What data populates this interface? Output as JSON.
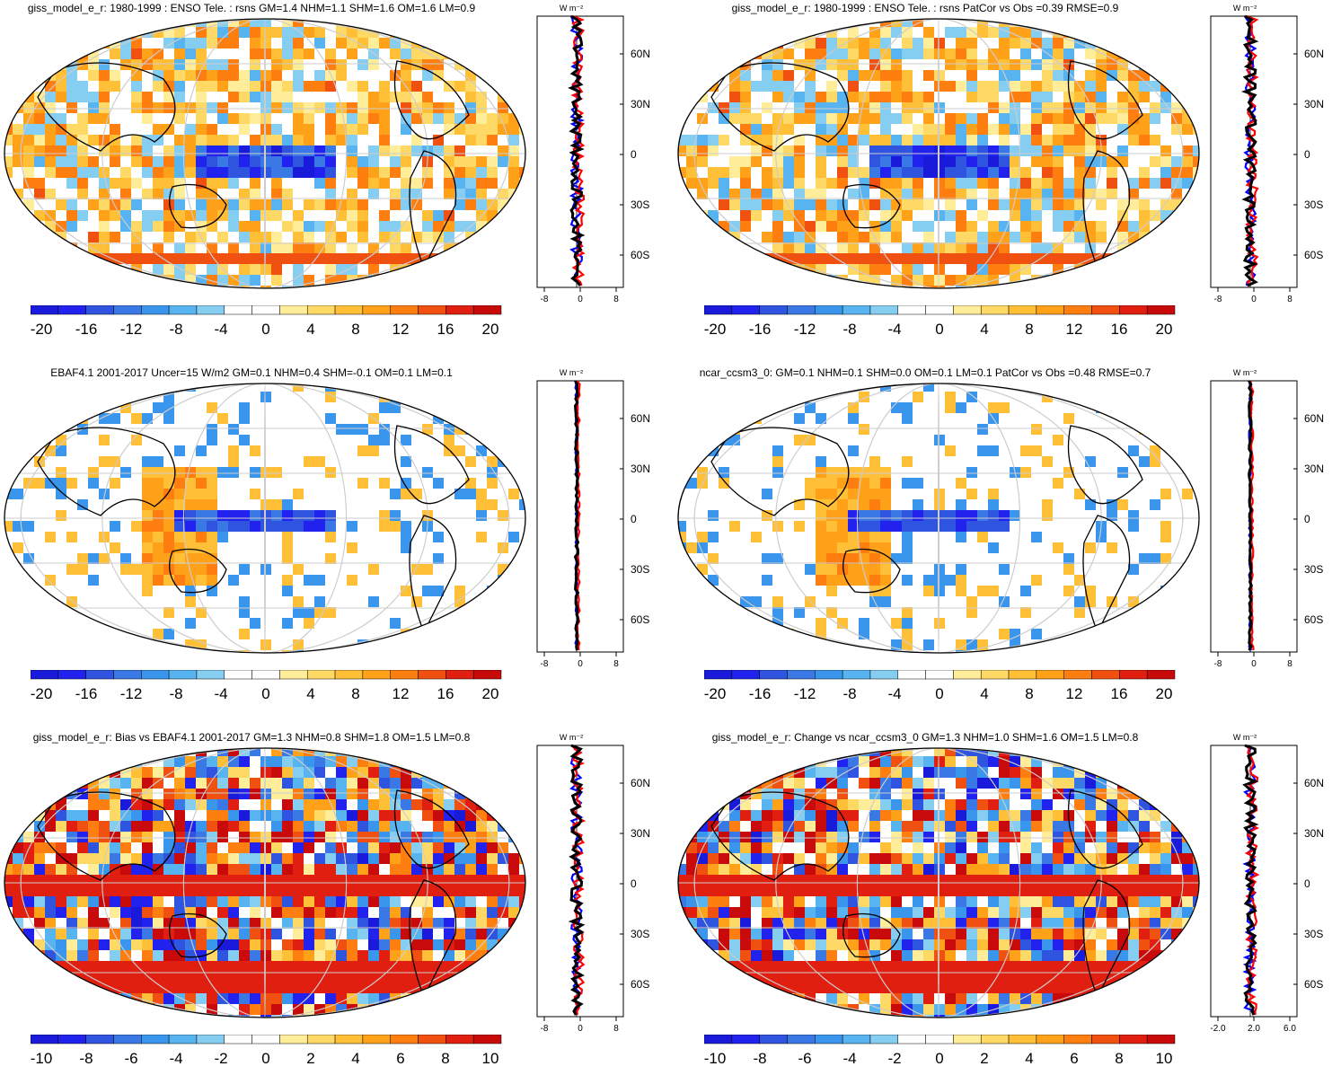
{
  "palette": {
    "levels20": [
      "#1a1adb",
      "#2222ee",
      "#2f55e0",
      "#3a78e6",
      "#3a95ec",
      "#57b4f0",
      "#86cdf2",
      "#ffffff",
      "#ffffff",
      "#ffed9a",
      "#ffd966",
      "#ffc038",
      "#ffa21a",
      "#ff7e10",
      "#f05010",
      "#e01f10",
      "#c80a0a"
    ],
    "ocean_positive": "#ffd966",
    "ocean_negative": "#57b4f0",
    "line_model": "#0000ff",
    "line_obs": "#ff0000",
    "line_third": "#000000",
    "grid": "#cccccc"
  },
  "panels": [
    {
      "title": "giss_model_e_r: 1980-1999 : ENSO Tele. : rsns GM=1.4 NHM=1.1 SHM=1.6 OM=1.6 LM=0.9",
      "field_style": "noisy",
      "colorbar_labels": [
        "-20",
        "-16",
        "-12",
        "-8",
        "-4",
        "0",
        "4",
        "8",
        "12",
        "16",
        "20"
      ],
      "profile": {
        "unit_label": "W m⁻²",
        "x_tick_labels": [
          "-8",
          "0",
          "8"
        ],
        "lat_labels": [
          "60N",
          "30N",
          "0",
          "30S",
          "60S"
        ]
      }
    },
    {
      "title": "giss_model_e_r: 1980-1999 : ENSO Tele. : rsns PatCor vs Obs =0.39 RMSE=0.9",
      "field_style": "noisy",
      "colorbar_labels": [
        "-20",
        "-16",
        "-12",
        "-8",
        "-4",
        "0",
        "4",
        "8",
        "12",
        "16",
        "20"
      ],
      "profile": {
        "unit_label": "W m⁻²",
        "x_tick_labels": [
          "-8",
          "0",
          "8"
        ],
        "lat_labels": [
          "60N",
          "30N",
          "0",
          "30S",
          "60S"
        ]
      }
    },
    {
      "title": "EBAF4.1 2001-2017 Uncer=15 W/m2 GM=0.1 NHM=0.4 SHM=-0.1 OM=0.1 LM=0.1",
      "field_style": "smooth",
      "colorbar_labels": [
        "-20",
        "-16",
        "-12",
        "-8",
        "-4",
        "0",
        "4",
        "8",
        "12",
        "16",
        "20"
      ],
      "profile": {
        "unit_label": "W m⁻²",
        "x_tick_labels": [
          "-8",
          "0",
          "8"
        ],
        "lat_labels": [
          "60N",
          "30N",
          "0",
          "30S",
          "60S"
        ]
      }
    },
    {
      "title": "ncar_ccsm3_0: GM=0.1 NHM=0.1 SHM=0.0 OM=0.1 LM=0.1 PatCor vs Obs =0.48 RMSE=0.7",
      "field_style": "smooth",
      "colorbar_labels": [
        "-20",
        "-16",
        "-12",
        "-8",
        "-4",
        "0",
        "4",
        "8",
        "12",
        "16",
        "20"
      ],
      "profile": {
        "unit_label": "W m⁻²",
        "x_tick_labels": [
          "-8",
          "0",
          "8"
        ],
        "lat_labels": [
          "60N",
          "30N",
          "0",
          "30S",
          "60S"
        ]
      }
    },
    {
      "title": "giss_model_e_r: Bias vs EBAF4.1 2001-2017 GM=1.3 NHM=0.8 SHM=1.8 OM=1.5 LM=0.8",
      "field_style": "bias",
      "colorbar_labels": [
        "-10",
        "-8",
        "-6",
        "-4",
        "-2",
        "0",
        "2",
        "4",
        "6",
        "8",
        "10"
      ],
      "profile": {
        "unit_label": "W m⁻²",
        "x_tick_labels": [
          "-8",
          "0",
          "8"
        ],
        "lat_labels": [
          "60N",
          "30N",
          "0",
          "30S",
          "60S"
        ]
      }
    },
    {
      "title": "giss_model_e_r: Change vs ncar_ccsm3_0 GM=1.3 NHM=1.0 SHM=1.6 OM=1.5 LM=0.8",
      "field_style": "bias",
      "colorbar_labels": [
        "-10",
        "-8",
        "-6",
        "-4",
        "-2",
        "0",
        "2",
        "4",
        "6",
        "8",
        "10"
      ],
      "profile": {
        "unit_label": "W m⁻²",
        "x_tick_labels": [
          "-2.0",
          "2.0",
          "6.0"
        ],
        "lat_labels": [
          "60N",
          "30N",
          "0",
          "30S",
          "60S"
        ]
      }
    }
  ],
  "chart_data": [
    {
      "type": "heatmap",
      "title": "giss_model_e_r: 1980-1999 : ENSO Tele. : rsns GM=1.4 NHM=1.1 SHM=1.6 OM=1.6 LM=0.9",
      "colorbar": {
        "min": -20,
        "max": 20,
        "ticks": [
          -20,
          -16,
          -12,
          -8,
          -4,
          0,
          4,
          8,
          12,
          16,
          20
        ]
      },
      "zonal_profile": {
        "xlim": [
          -10,
          10
        ],
        "x_ticks": [
          -8,
          0,
          8
        ],
        "lat_ticks": [
          60,
          30,
          0,
          -30,
          -60
        ],
        "series": [
          {
            "color": "#0000ff",
            "values": []
          },
          {
            "color": "#ff0000",
            "values": []
          },
          {
            "color": "#000000",
            "values": []
          }
        ]
      }
    },
    {
      "type": "heatmap",
      "title": "giss_model_e_r: 1980-1999 : ENSO Tele. : rsns PatCor vs Obs =0.39 RMSE=0.9",
      "colorbar": {
        "min": -20,
        "max": 20,
        "ticks": [
          -20,
          -16,
          -12,
          -8,
          -4,
          0,
          4,
          8,
          12,
          16,
          20
        ]
      },
      "zonal_profile": {
        "xlim": [
          -10,
          10
        ],
        "x_ticks": [
          -8,
          0,
          8
        ],
        "lat_ticks": [
          60,
          30,
          0,
          -30,
          -60
        ],
        "series": [
          {
            "color": "#0000ff",
            "values": []
          },
          {
            "color": "#ff0000",
            "values": []
          },
          {
            "color": "#000000",
            "values": []
          }
        ]
      }
    },
    {
      "type": "heatmap",
      "title": "EBAF4.1 2001-2017 Uncer=15 W/m2 GM=0.1 NHM=0.4 SHM=-0.1 OM=0.1 LM=0.1",
      "colorbar": {
        "min": -20,
        "max": 20,
        "ticks": [
          -20,
          -16,
          -12,
          -8,
          -4,
          0,
          4,
          8,
          12,
          16,
          20
        ]
      },
      "zonal_profile": {
        "xlim": [
          -10,
          10
        ],
        "x_ticks": [
          -8,
          0,
          8
        ],
        "lat_ticks": [
          60,
          30,
          0,
          -30,
          -60
        ],
        "series": [
          {
            "color": "#0000ff",
            "values": []
          },
          {
            "color": "#ff0000",
            "values": []
          },
          {
            "color": "#000000",
            "values": []
          }
        ]
      }
    },
    {
      "type": "heatmap",
      "title": "ncar_ccsm3_0: GM=0.1 NHM=0.1 SHM=0.0 OM=0.1 LM=0.1 PatCor vs Obs =0.48 RMSE=0.7",
      "colorbar": {
        "min": -20,
        "max": 20,
        "ticks": [
          -20,
          -16,
          -12,
          -8,
          -4,
          0,
          4,
          8,
          12,
          16,
          20
        ]
      },
      "zonal_profile": {
        "xlim": [
          -10,
          10
        ],
        "x_ticks": [
          -8,
          0,
          8
        ],
        "lat_ticks": [
          60,
          30,
          0,
          -30,
          -60
        ],
        "series": [
          {
            "color": "#0000ff",
            "values": []
          },
          {
            "color": "#ff0000",
            "values": []
          },
          {
            "color": "#000000",
            "values": []
          }
        ]
      }
    },
    {
      "type": "heatmap",
      "title": "giss_model_e_r: Bias vs EBAF4.1 2001-2017 GM=1.3 NHM=0.8 SHM=1.8 OM=1.5 LM=0.8",
      "colorbar": {
        "min": -10,
        "max": 10,
        "ticks": [
          -10,
          -8,
          -6,
          -4,
          -2,
          0,
          2,
          4,
          6,
          8,
          10
        ]
      },
      "zonal_profile": {
        "xlim": [
          -10,
          10
        ],
        "x_ticks": [
          -8,
          0,
          8
        ],
        "lat_ticks": [
          60,
          30,
          0,
          -30,
          -60
        ],
        "series": [
          {
            "color": "#0000ff",
            "values": []
          },
          {
            "color": "#ff0000",
            "values": []
          },
          {
            "color": "#000000",
            "values": []
          }
        ]
      }
    },
    {
      "type": "heatmap",
      "title": "giss_model_e_r: Change vs ncar_ccsm3_0 GM=1.3 NHM=1.0 SHM=1.6 OM=1.5 LM=0.8",
      "colorbar": {
        "min": -10,
        "max": 10,
        "ticks": [
          -10,
          -8,
          -6,
          -4,
          -2,
          0,
          2,
          4,
          6,
          8,
          10
        ]
      },
      "zonal_profile": {
        "xlim": [
          -4,
          10
        ],
        "x_ticks": [
          -2,
          2,
          6
        ],
        "lat_ticks": [
          60,
          30,
          0,
          -30,
          -60
        ],
        "series": [
          {
            "color": "#0000ff",
            "values": []
          },
          {
            "color": "#ff0000",
            "values": []
          },
          {
            "color": "#000000",
            "values": []
          }
        ]
      }
    }
  ]
}
